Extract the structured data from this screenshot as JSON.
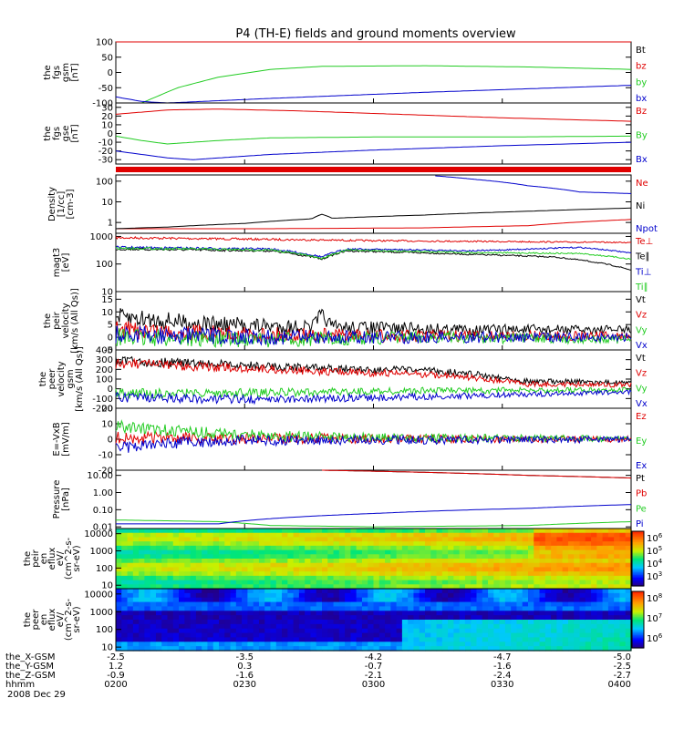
{
  "title": "P4 (TH-E) fields and ground moments overview",
  "colors": {
    "black": "#000000",
    "red": "#e00000",
    "green": "#22cc22",
    "blue": "#0000cc"
  },
  "chart_data": {
    "type": "line",
    "time_labels": [
      "0200",
      "0230",
      "0300",
      "0330",
      "0400"
    ],
    "panels": [
      {
        "id": "fgs_gsm",
        "ylabel": [
          "the",
          "fgs",
          "gsm",
          "[nT]"
        ],
        "yticks": [
          "100",
          "50",
          "0",
          "-50",
          "-100"
        ],
        "ylim": [
          -100,
          100
        ],
        "series": [
          {
            "name": "Bt",
            "color": "black",
            "points": [
              [
                0,
                105
              ],
              [
                1,
                105
              ]
            ]
          },
          {
            "name": "bz",
            "color": "red",
            "points": [
              [
                0,
                103
              ],
              [
                1,
                103
              ]
            ]
          },
          {
            "name": "by",
            "color": "green",
            "points": [
              [
                0.05,
                -100
              ],
              [
                0.12,
                -50
              ],
              [
                0.2,
                -15
              ],
              [
                0.3,
                10
              ],
              [
                0.4,
                20
              ],
              [
                0.6,
                22
              ],
              [
                0.8,
                18
              ],
              [
                1,
                10
              ]
            ]
          },
          {
            "name": "bx",
            "color": "blue",
            "points": [
              [
                0,
                -80
              ],
              [
                0.05,
                -95
              ],
              [
                0.1,
                -100
              ],
              [
                0.3,
                -85
              ],
              [
                0.6,
                -65
              ],
              [
                1,
                -42
              ]
            ]
          }
        ]
      },
      {
        "id": "fgs_gse",
        "ylabel": [
          "the",
          "fgs",
          "gse",
          "[nT]"
        ],
        "yticks": [
          "30",
          "20",
          "10",
          "0",
          "-10",
          "-20",
          "-30"
        ],
        "ylim": [
          -35,
          35
        ],
        "series": [
          {
            "name": "Bz",
            "color": "red",
            "points": [
              [
                0,
                22
              ],
              [
                0.1,
                27
              ],
              [
                0.2,
                28
              ],
              [
                0.35,
                26
              ],
              [
                0.55,
                22
              ],
              [
                0.75,
                18
              ],
              [
                1,
                14
              ]
            ]
          },
          {
            "name": "By",
            "color": "green",
            "points": [
              [
                0,
                -3
              ],
              [
                0.05,
                -8
              ],
              [
                0.1,
                -12
              ],
              [
                0.2,
                -8
              ],
              [
                0.3,
                -5
              ],
              [
                0.5,
                -4
              ],
              [
                0.75,
                -4
              ],
              [
                1,
                -3
              ]
            ]
          },
          {
            "name": "Bx",
            "color": "blue",
            "points": [
              [
                0,
                -20
              ],
              [
                0.1,
                -28
              ],
              [
                0.15,
                -30
              ],
              [
                0.3,
                -24
              ],
              [
                0.5,
                -19
              ],
              [
                0.75,
                -14
              ],
              [
                1,
                -10
              ]
            ]
          }
        ]
      },
      {
        "id": "density",
        "ylabel": [
          "Density",
          "[1/cc]",
          "[cm-3]"
        ],
        "yticks": [
          "100",
          "10",
          "1"
        ],
        "ylim": [
          0.3,
          200
        ],
        "log": true,
        "series": [
          {
            "name": "Ne",
            "color": "red",
            "points": [
              [
                0,
                0.5
              ],
              [
                0.3,
                0.5
              ],
              [
                0.6,
                0.55
              ],
              [
                0.8,
                0.7
              ],
              [
                1,
                1.4
              ]
            ]
          },
          {
            "name": "Ni",
            "color": "black",
            "points": [
              [
                0,
                0.5
              ],
              [
                0.1,
                0.6
              ],
              [
                0.25,
                0.9
              ],
              [
                0.38,
                1.5
              ],
              [
                0.4,
                2.5
              ],
              [
                0.42,
                1.6
              ],
              [
                0.6,
                2.3
              ],
              [
                0.8,
                3.5
              ],
              [
                1,
                5
              ]
            ]
          },
          {
            "name": "Npot",
            "color": "blue",
            "points": [
              [
                0.62,
                180
              ],
              [
                0.7,
                120
              ],
              [
                0.75,
                90
              ],
              [
                0.8,
                60
              ],
              [
                0.9,
                30
              ],
              [
                1,
                25
              ]
            ]
          }
        ]
      },
      {
        "id": "temperature",
        "ylabel": [
          "magt3",
          "[eV]"
        ],
        "yticks": [
          "1000",
          "100",
          "10"
        ],
        "ylim": [
          10,
          1300
        ],
        "log": true,
        "series": [
          {
            "name": "Te⊥",
            "color": "red",
            "points": [
              [
                0,
                900
              ],
              [
                0.25,
                800
              ],
              [
                0.5,
                700
              ],
              [
                0.75,
                650
              ],
              [
                1,
                600
              ]
            ]
          },
          {
            "name": "Te∥",
            "color": "black",
            "points": [
              [
                0,
                350
              ],
              [
                0.3,
                300
              ],
              [
                0.4,
                150
              ],
              [
                0.45,
                300
              ],
              [
                0.7,
                220
              ],
              [
                0.85,
                180
              ],
              [
                1,
                60
              ]
            ]
          },
          {
            "name": "Ti⊥",
            "color": "blue",
            "points": [
              [
                0,
                400
              ],
              [
                0.3,
                350
              ],
              [
                0.4,
                180
              ],
              [
                0.45,
                350
              ],
              [
                0.7,
                300
              ],
              [
                0.9,
                400
              ],
              [
                1,
                250
              ]
            ]
          },
          {
            "name": "Ti∥",
            "color": "green",
            "points": [
              [
                0,
                380
              ],
              [
                0.3,
                320
              ],
              [
                0.4,
                160
              ],
              [
                0.45,
                320
              ],
              [
                0.7,
                260
              ],
              [
                0.9,
                240
              ],
              [
                1,
                150
              ]
            ]
          }
        ]
      },
      {
        "id": "peir_velocity",
        "ylabel": [
          "the",
          "peir",
          "velocity",
          "[km/s (All Qs)]"
        ],
        "yticks": [
          "15",
          "10",
          "5",
          "0",
          "-5"
        ],
        "ylim": [
          -5,
          18
        ],
        "series": [
          {
            "name": "Vt",
            "color": "black",
            "points": [
              [
                0,
                8
              ],
              [
                0.2,
                5
              ],
              [
                0.38,
                4
              ],
              [
                0.4,
                9
              ],
              [
                0.42,
                4
              ],
              [
                0.7,
                3
              ],
              [
                1,
                3
              ]
            ]
          },
          {
            "name": "Vz",
            "color": "red",
            "points": [
              [
                0,
                3
              ],
              [
                0.3,
                1
              ],
              [
                0.5,
                0.5
              ],
              [
                1,
                0.5
              ]
            ]
          },
          {
            "name": "Vy",
            "color": "green",
            "points": [
              [
                0,
                0
              ],
              [
                0.3,
                -1
              ],
              [
                0.6,
                0
              ],
              [
                1,
                -1
              ]
            ]
          },
          {
            "name": "Vx",
            "color": "blue",
            "points": [
              [
                0,
                1
              ],
              [
                0.3,
                0
              ],
              [
                0.6,
                0
              ],
              [
                1,
                0
              ]
            ]
          }
        ]
      },
      {
        "id": "peer_velocity",
        "ylabel": [
          "the",
          "peer",
          "velocity",
          "gsm",
          "[km/s (All Qs)]"
        ],
        "yticks": [
          "400",
          "300",
          "200",
          "100",
          "0",
          "-100",
          "-200"
        ],
        "ylim": [
          -200,
          400
        ],
        "series": [
          {
            "name": "Vt",
            "color": "black",
            "points": [
              [
                0,
                290
              ],
              [
                0.2,
                250
              ],
              [
                0.4,
                210
              ],
              [
                0.6,
                190
              ],
              [
                0.7,
                150
              ],
              [
                0.8,
                80
              ],
              [
                1,
                60
              ]
            ]
          },
          {
            "name": "Vz",
            "color": "red",
            "points": [
              [
                0,
                260
              ],
              [
                0.2,
                220
              ],
              [
                0.4,
                180
              ],
              [
                0.6,
                150
              ],
              [
                0.7,
                110
              ],
              [
                0.8,
                50
              ],
              [
                1,
                40
              ]
            ]
          },
          {
            "name": "Vy",
            "color": "green",
            "points": [
              [
                0,
                -50
              ],
              [
                0.3,
                -40
              ],
              [
                0.6,
                -20
              ],
              [
                1,
                -10
              ]
            ]
          },
          {
            "name": "Vx",
            "color": "blue",
            "points": [
              [
                0,
                -90
              ],
              [
                0.3,
                -110
              ],
              [
                0.6,
                -80
              ],
              [
                0.85,
                -50
              ],
              [
                1,
                -30
              ]
            ]
          }
        ]
      },
      {
        "id": "efield",
        "ylabel": [
          "E=-VxB",
          "[mV/m]"
        ],
        "yticks": [
          "20",
          "10",
          "0",
          "-10",
          "-20"
        ],
        "ylim": [
          -20,
          20
        ],
        "series": [
          {
            "name": "Ez",
            "color": "red",
            "points": [
              [
                0,
                1
              ],
              [
                0.2,
                0.5
              ],
              [
                1,
                0
              ]
            ]
          },
          {
            "name": "Ey",
            "color": "green",
            "points": [
              [
                0,
                8
              ],
              [
                0.15,
                5
              ],
              [
                0.3,
                2
              ],
              [
                0.5,
                1
              ],
              [
                1,
                0.3
              ]
            ]
          },
          {
            "name": "Ex",
            "color": "blue",
            "points": [
              [
                0,
                -6
              ],
              [
                0.1,
                -3
              ],
              [
                0.2,
                -1
              ],
              [
                1,
                0
              ]
            ]
          }
        ]
      },
      {
        "id": "pressure",
        "ylabel": [
          "Pressure",
          "[nPa]"
        ],
        "yticks": [
          "10.00",
          "1.00",
          "0.10",
          "0.01"
        ],
        "ylim": [
          0.008,
          20
        ],
        "log": true,
        "series": [
          {
            "name": "Pt",
            "color": "black",
            "points": [
              [
                0.4,
                20
              ],
              [
                0.6,
                15
              ],
              [
                0.8,
                10
              ],
              [
                1,
                7
              ]
            ]
          },
          {
            "name": "Pb",
            "color": "red",
            "points": [
              [
                0.4,
                20
              ],
              [
                0.6,
                15
              ],
              [
                0.8,
                10
              ],
              [
                1,
                7
              ]
            ]
          },
          {
            "name": "Pe",
            "color": "green",
            "points": [
              [
                0,
                0.025
              ],
              [
                0.2,
                0.02
              ],
              [
                0.3,
                0.012
              ],
              [
                0.5,
                0.01
              ],
              [
                0.8,
                0.012
              ],
              [
                1,
                0.02
              ]
            ]
          },
          {
            "name": "Pi",
            "color": "blue",
            "points": [
              [
                0,
                0.015
              ],
              [
                0.2,
                0.015
              ],
              [
                0.3,
                0.03
              ],
              [
                0.5,
                0.06
              ],
              [
                0.8,
                0.12
              ],
              [
                1,
                0.2
              ]
            ]
          }
        ]
      }
    ],
    "spectrograms": [
      {
        "id": "peir_flux",
        "ylabel": [
          "the",
          "peir",
          "en",
          "eflux",
          "eV/",
          "(cm^2-s-",
          "sr-eV)"
        ],
        "yticks": [
          "10000",
          "1000",
          "100",
          "10"
        ],
        "colorbar_ticks": [
          "10^6",
          "10^5",
          "10^4",
          "10^3"
        ]
      },
      {
        "id": "peer_flux",
        "ylabel": [
          "the",
          "peer",
          "en",
          "eflux",
          "eV/",
          "(cm^2-s-",
          "sr-eV)"
        ],
        "yticks": [
          "10000",
          "1000",
          "100",
          "10"
        ],
        "colorbar_ticks": [
          "10^8",
          "10^7",
          "10^6"
        ]
      }
    ],
    "ephemeris": [
      {
        "label": "the_X-GSM",
        "values": [
          "-2.5",
          "-3.5",
          "-4.2",
          "-4.7",
          "-5.0"
        ]
      },
      {
        "label": "the_Y-GSM",
        "values": [
          "1.2",
          "0.3",
          "-0.7",
          "-1.6",
          "-2.5"
        ]
      },
      {
        "label": "the_Z-GSM",
        "values": [
          "-0.9",
          "-1.6",
          "-2.1",
          "-2.4",
          "-2.7"
        ]
      },
      {
        "label": "hhmm",
        "values": [
          "0200",
          "0230",
          "0300",
          "0330",
          "0400"
        ]
      }
    ],
    "date": "2008 Dec 29"
  }
}
